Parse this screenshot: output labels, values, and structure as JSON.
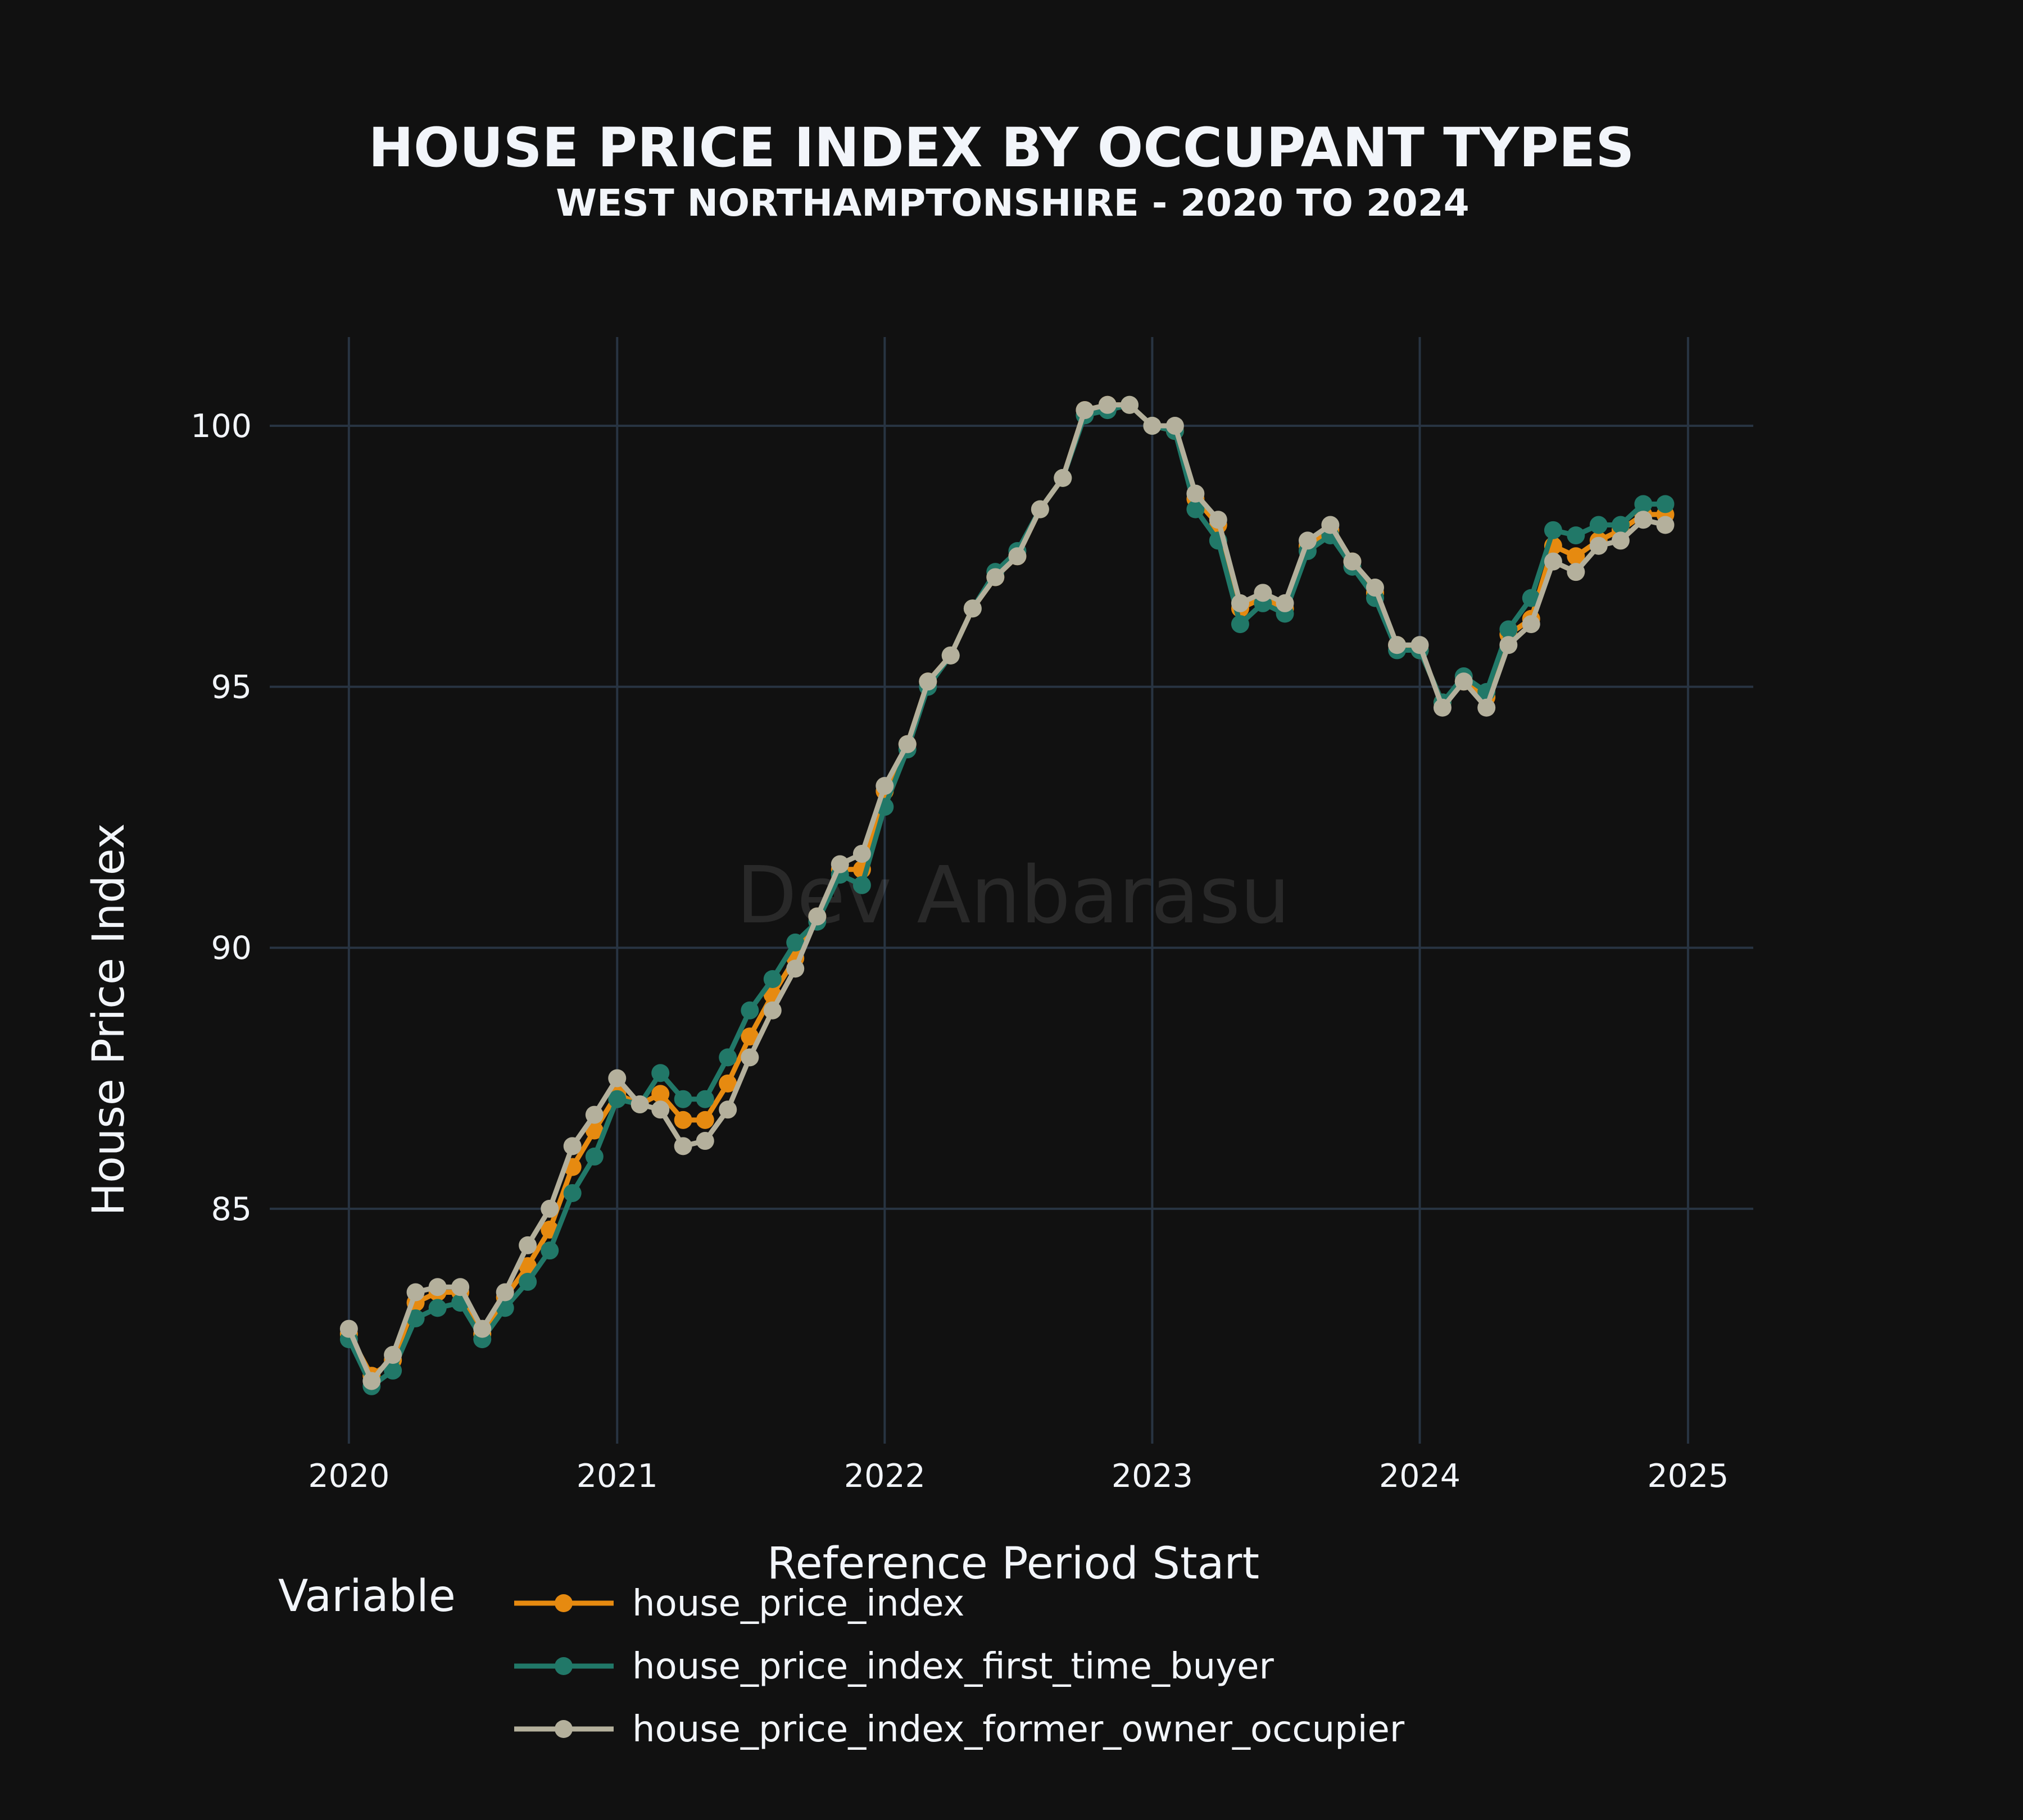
{
  "chart_data": {
    "type": "line",
    "title": "HOUSE PRICE INDEX BY OCCUPANT TYPES",
    "subtitle": "WEST NORTHAMPTONSHIRE - 2020 TO 2024",
    "xlabel": "Reference Period Start",
    "ylabel": "House Price Index",
    "legend_title": "Variable",
    "legend_position": "bottom",
    "watermark": "Dev Anbarasu",
    "grid": true,
    "x_ticks": [
      "2020",
      "2021",
      "2022",
      "2023",
      "2024",
      "2025"
    ],
    "y_ticks": [
      85,
      90,
      95,
      100
    ],
    "xlim": [
      "2019-09-15",
      "2025-03-31"
    ],
    "ylim": [
      80.5,
      101.7
    ],
    "x": [
      "2020-01-01",
      "2020-02-01",
      "2020-03-01",
      "2020-04-01",
      "2020-05-01",
      "2020-06-01",
      "2020-07-01",
      "2020-08-01",
      "2020-09-01",
      "2020-10-01",
      "2020-11-01",
      "2020-12-01",
      "2021-01-01",
      "2021-02-01",
      "2021-03-01",
      "2021-04-01",
      "2021-05-01",
      "2021-06-01",
      "2021-07-01",
      "2021-08-01",
      "2021-09-01",
      "2021-10-01",
      "2021-11-01",
      "2021-12-01",
      "2022-01-01",
      "2022-02-01",
      "2022-03-01",
      "2022-04-01",
      "2022-05-01",
      "2022-06-01",
      "2022-07-01",
      "2022-08-01",
      "2022-09-01",
      "2022-10-01",
      "2022-11-01",
      "2022-12-01",
      "2023-01-01",
      "2023-02-01",
      "2023-03-01",
      "2023-04-01",
      "2023-05-01",
      "2023-06-01",
      "2023-07-01",
      "2023-08-01",
      "2023-09-01",
      "2023-10-01",
      "2023-11-01",
      "2023-12-01",
      "2024-01-01",
      "2024-02-01",
      "2024-03-01",
      "2024-04-01",
      "2024-05-01",
      "2024-06-01",
      "2024-07-01",
      "2024-08-01",
      "2024-09-01",
      "2024-10-01",
      "2024-11-01",
      "2024-12-01"
    ],
    "series": [
      {
        "name": "house_price_index",
        "color": "#e68a10",
        "values": [
          82.6,
          81.8,
          82.1,
          83.2,
          83.4,
          83.4,
          82.6,
          83.3,
          83.9,
          84.6,
          85.8,
          86.5,
          87.2,
          87.0,
          87.2,
          86.7,
          86.7,
          87.4,
          88.3,
          89.1,
          89.8,
          90.6,
          91.5,
          91.5,
          93.0,
          93.9,
          95.1,
          95.6,
          96.5,
          97.1,
          97.5,
          98.4,
          99.0,
          100.3,
          100.4,
          100.4,
          100.0,
          99.9,
          98.6,
          98.1,
          96.5,
          96.7,
          96.5,
          97.7,
          98.0,
          97.4,
          96.8,
          95.8,
          95.7,
          94.7,
          95.1,
          94.8,
          96.0,
          96.3,
          97.7,
          97.5,
          97.8,
          98.0,
          98.3,
          98.3
        ]
      },
      {
        "name": "house_price_index_first_time_buyer",
        "color": "#217868",
        "values": [
          82.5,
          81.6,
          81.9,
          82.9,
          83.1,
          83.2,
          82.5,
          83.1,
          83.6,
          84.2,
          85.3,
          86.0,
          87.1,
          87.0,
          87.6,
          87.1,
          87.1,
          87.9,
          88.8,
          89.4,
          90.1,
          90.5,
          91.4,
          91.2,
          92.7,
          93.8,
          95.0,
          95.6,
          96.5,
          97.2,
          97.6,
          98.4,
          99.0,
          100.2,
          100.3,
          100.4,
          100.0,
          99.9,
          98.4,
          97.8,
          96.2,
          96.6,
          96.4,
          97.6,
          97.9,
          97.3,
          96.7,
          95.7,
          95.7,
          94.7,
          95.2,
          94.9,
          96.1,
          96.7,
          98.0,
          97.9,
          98.1,
          98.1,
          98.5,
          98.5
        ]
      },
      {
        "name": "house_price_index_former_owner_occupier",
        "color": "#b4b09c",
        "values": [
          82.7,
          81.7,
          82.2,
          83.4,
          83.5,
          83.5,
          82.7,
          83.4,
          84.3,
          85.0,
          86.2,
          86.8,
          87.5,
          87.0,
          86.9,
          86.2,
          86.3,
          86.9,
          87.9,
          88.8,
          89.6,
          90.6,
          91.6,
          91.8,
          93.1,
          93.9,
          95.1,
          95.6,
          96.5,
          97.1,
          97.5,
          98.4,
          99.0,
          100.3,
          100.4,
          100.4,
          100.0,
          100.0,
          98.7,
          98.2,
          96.6,
          96.8,
          96.6,
          97.8,
          98.1,
          97.4,
          96.9,
          95.8,
          95.8,
          94.6,
          95.1,
          94.6,
          95.8,
          96.2,
          97.4,
          97.2,
          97.7,
          97.8,
          98.2,
          98.1
        ]
      }
    ]
  }
}
